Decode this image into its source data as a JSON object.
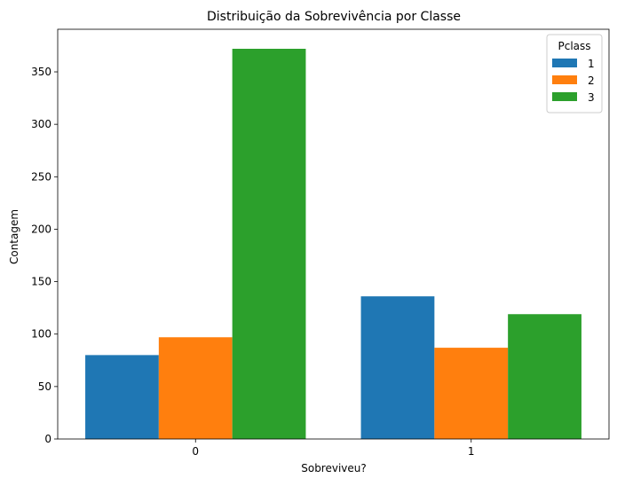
{
  "chart_data": {
    "type": "bar",
    "title": "Distribuição da Sobrevivência por Classe",
    "xlabel": "Sobreviveu?",
    "ylabel": "Contagem",
    "categories": [
      "0",
      "1"
    ],
    "series": [
      {
        "name": "1",
        "values": [
          80,
          136
        ],
        "color": "#1f77b4"
      },
      {
        "name": "2",
        "values": [
          97,
          87
        ],
        "color": "#ff7f0e"
      },
      {
        "name": "3",
        "values": [
          372,
          119
        ],
        "color": "#2ca02c"
      }
    ],
    "ylim": [
      0,
      390.6
    ],
    "yticks": [
      0,
      50,
      100,
      150,
      200,
      250,
      300,
      350
    ],
    "legend": {
      "title": "Pclass",
      "placement": "top-right"
    },
    "grid": false
  }
}
